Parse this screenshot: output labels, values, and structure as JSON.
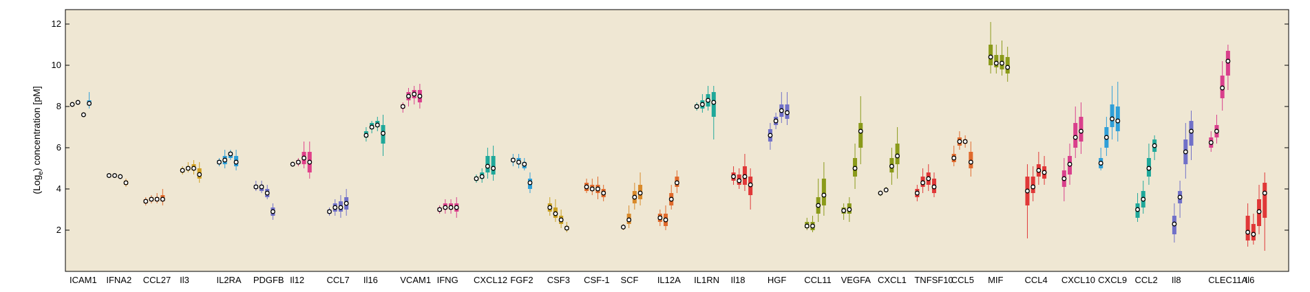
{
  "chart_data": {
    "type": "box",
    "ylabel": "(Log",
    "ylabel_sub": "e",
    "ylabel_rest": ") concentration [pM]",
    "ylim": [
      0,
      12.7
    ],
    "yticks": [
      2,
      4,
      6,
      8,
      10,
      12
    ],
    "background": "#efe7d3",
    "categories": [
      {
        "label": "ICAM1",
        "color": "#2f9fd8",
        "boxes": [
          [
            8.05,
            8.08,
            8.1,
            8.12,
            8.15
          ],
          [
            8.1,
            8.15,
            8.2,
            8.25,
            8.3
          ],
          [
            7.5,
            7.55,
            7.6,
            7.65,
            7.7
          ],
          [
            7.9,
            8.05,
            8.15,
            8.3,
            8.7
          ]
        ]
      },
      {
        "label": "IFNA2",
        "color": "#d98a2b",
        "boxes": [
          [
            4.6,
            4.63,
            4.65,
            4.68,
            4.7
          ],
          [
            4.6,
            4.62,
            4.65,
            4.68,
            4.7
          ],
          [
            4.5,
            4.55,
            4.6,
            4.65,
            4.7
          ],
          [
            4.1,
            4.2,
            4.3,
            4.4,
            4.5
          ]
        ]
      },
      {
        "label": "CCL27",
        "color": "#e06a2c",
        "boxes": [
          [
            3.2,
            3.3,
            3.4,
            3.5,
            3.6
          ],
          [
            3.3,
            3.4,
            3.5,
            3.6,
            3.7
          ],
          [
            3.3,
            3.4,
            3.5,
            3.6,
            3.8
          ],
          [
            3.2,
            3.4,
            3.5,
            3.7,
            4.0
          ]
        ]
      },
      {
        "label": "Il3",
        "color": "#d1a020",
        "boxes": [
          [
            4.7,
            4.8,
            4.9,
            5.0,
            5.1
          ],
          [
            4.8,
            4.9,
            5.0,
            5.1,
            5.3
          ],
          [
            4.7,
            4.9,
            5.0,
            5.2,
            5.4
          ],
          [
            4.3,
            4.5,
            4.7,
            5.0,
            5.3
          ]
        ]
      },
      {
        "label": "IL2RA",
        "color": "#2f9fd8",
        "boxes": [
          [
            5.1,
            5.2,
            5.3,
            5.4,
            5.5
          ],
          [
            5.0,
            5.2,
            5.4,
            5.6,
            5.9
          ],
          [
            5.4,
            5.5,
            5.7,
            5.8,
            5.9
          ],
          [
            4.9,
            5.1,
            5.3,
            5.6,
            5.9
          ]
        ]
      },
      {
        "label": "PDGFB",
        "color": "#7070c8",
        "boxes": [
          [
            3.9,
            4.0,
            4.1,
            4.2,
            4.4
          ],
          [
            3.8,
            3.9,
            4.1,
            4.2,
            4.4
          ],
          [
            3.5,
            3.6,
            3.8,
            4.0,
            4.2
          ],
          [
            2.5,
            2.7,
            2.9,
            3.1,
            3.3
          ]
        ]
      },
      {
        "label": "Il12",
        "color": "#e0408a",
        "boxes": [
          [
            5.1,
            5.15,
            5.2,
            5.25,
            5.3
          ],
          [
            5.1,
            5.2,
            5.3,
            5.4,
            5.5
          ],
          [
            5.0,
            5.2,
            5.5,
            5.8,
            6.3
          ],
          [
            4.5,
            4.8,
            5.3,
            5.8,
            6.3
          ]
        ]
      },
      {
        "label": "CCL7",
        "color": "#7070c8",
        "boxes": [
          [
            2.7,
            2.8,
            2.9,
            3.0,
            3.1
          ],
          [
            2.7,
            2.9,
            3.1,
            3.3,
            3.5
          ],
          [
            2.6,
            2.9,
            3.1,
            3.4,
            3.7
          ],
          [
            2.7,
            3.0,
            3.3,
            3.6,
            4.0
          ]
        ]
      },
      {
        "label": "Il16",
        "color": "#1fa89a",
        "boxes": [
          [
            6.3,
            6.5,
            6.6,
            6.8,
            7.0
          ],
          [
            6.7,
            6.9,
            7.0,
            7.2,
            7.3
          ],
          [
            6.8,
            7.0,
            7.1,
            7.3,
            7.5
          ],
          [
            5.6,
            6.2,
            6.7,
            7.1,
            7.6
          ]
        ]
      },
      {
        "label": "VCAM1",
        "color": "#d93f8c",
        "boxes": [
          [
            7.7,
            7.9,
            8.0,
            8.1,
            8.2
          ],
          [
            8.0,
            8.3,
            8.5,
            8.7,
            8.9
          ],
          [
            8.1,
            8.4,
            8.6,
            8.8,
            9.0
          ],
          [
            7.9,
            8.2,
            8.5,
            8.8,
            9.1
          ]
        ]
      },
      {
        "label": "IFNG",
        "color": "#d93f8c",
        "boxes": [
          [
            2.8,
            2.9,
            3.0,
            3.1,
            3.2
          ],
          [
            2.8,
            3.0,
            3.1,
            3.3,
            3.5
          ],
          [
            2.8,
            3.0,
            3.1,
            3.3,
            3.5
          ],
          [
            2.6,
            2.9,
            3.1,
            3.3,
            3.6
          ]
        ]
      },
      {
        "label": "CXCL12",
        "color": "#1fa89a",
        "boxes": [
          [
            4.3,
            4.4,
            4.5,
            4.6,
            4.7
          ],
          [
            4.3,
            4.5,
            4.6,
            4.8,
            5.0
          ],
          [
            4.5,
            4.8,
            5.1,
            5.6,
            6.0
          ],
          [
            4.4,
            4.7,
            5.0,
            5.6,
            6.1
          ]
        ]
      },
      {
        "label": "FGF2",
        "color": "#2f9fd8",
        "boxes": [
          [
            5.1,
            5.3,
            5.4,
            5.5,
            5.7
          ],
          [
            5.0,
            5.2,
            5.3,
            5.5,
            5.7
          ],
          [
            4.9,
            5.0,
            5.2,
            5.3,
            5.5
          ],
          [
            3.8,
            4.0,
            4.3,
            4.5,
            4.8
          ]
        ]
      },
      {
        "label": "CSF3",
        "color": "#c9a020",
        "boxes": [
          [
            2.7,
            2.9,
            3.1,
            3.3,
            3.6
          ],
          [
            2.4,
            2.6,
            2.8,
            3.1,
            3.5
          ],
          [
            2.1,
            2.3,
            2.5,
            2.7,
            3.0
          ],
          [
            1.9,
            2.0,
            2.1,
            2.2,
            2.4
          ]
        ]
      },
      {
        "label": "CSF-1",
        "color": "#e06a2c",
        "boxes": [
          [
            3.8,
            3.9,
            4.1,
            4.3,
            4.5
          ],
          [
            3.7,
            3.9,
            4.0,
            4.2,
            4.5
          ],
          [
            3.5,
            3.8,
            4.0,
            4.2,
            4.6
          ],
          [
            3.4,
            3.6,
            3.8,
            4.0,
            4.2
          ]
        ]
      },
      {
        "label": "SCF",
        "color": "#d98a2b",
        "boxes": [
          [
            2.0,
            2.1,
            2.15,
            2.2,
            2.3
          ],
          [
            2.1,
            2.3,
            2.5,
            2.8,
            3.2
          ],
          [
            3.0,
            3.3,
            3.6,
            3.9,
            4.3
          ],
          [
            3.2,
            3.5,
            3.8,
            4.2,
            4.8
          ]
        ]
      },
      {
        "label": "IL12A",
        "color": "#e06a2c",
        "boxes": [
          [
            2.2,
            2.4,
            2.6,
            2.8,
            3.0
          ],
          [
            2.0,
            2.2,
            2.5,
            2.8,
            3.2
          ],
          [
            3.0,
            3.2,
            3.5,
            3.8,
            4.2
          ],
          [
            3.8,
            4.1,
            4.3,
            4.6,
            4.9
          ]
        ]
      },
      {
        "label": "IL1RN",
        "color": "#1fa89a",
        "boxes": [
          [
            7.8,
            7.9,
            8.0,
            8.1,
            8.2
          ],
          [
            7.7,
            7.9,
            8.1,
            8.3,
            8.6
          ],
          [
            7.8,
            8.0,
            8.3,
            8.6,
            9.0
          ],
          [
            6.4,
            7.5,
            8.2,
            8.7,
            9.0
          ]
        ]
      },
      {
        "label": "Il18",
        "color": "#e03838",
        "boxes": [
          [
            4.2,
            4.4,
            4.6,
            4.8,
            5.1
          ],
          [
            4.0,
            4.2,
            4.4,
            4.7,
            5.0
          ],
          [
            3.9,
            4.2,
            4.6,
            5.1,
            5.7
          ],
          [
            3.0,
            3.7,
            4.2,
            4.6,
            5.0
          ]
        ]
      },
      {
        "label": "HGF",
        "color": "#7070c8",
        "boxes": [
          [
            5.9,
            6.3,
            6.6,
            6.9,
            7.2
          ],
          [
            6.9,
            7.1,
            7.3,
            7.5,
            7.7
          ],
          [
            7.2,
            7.5,
            7.8,
            8.1,
            8.7
          ],
          [
            7.1,
            7.4,
            7.7,
            8.1,
            8.7
          ]
        ]
      },
      {
        "label": "CCL11",
        "color": "#8a9a1a",
        "boxes": [
          [
            2.0,
            2.1,
            2.2,
            2.4,
            2.6
          ],
          [
            1.9,
            2.0,
            2.2,
            2.4,
            2.7
          ],
          [
            2.4,
            2.8,
            3.2,
            3.6,
            4.5
          ],
          [
            2.7,
            3.2,
            3.7,
            4.5,
            5.3
          ]
        ]
      },
      {
        "label": "VEGFA",
        "color": "#8a9a1a",
        "boxes": [
          [
            2.5,
            2.8,
            2.95,
            3.1,
            3.3
          ],
          [
            2.4,
            2.8,
            3.0,
            3.3,
            3.6
          ],
          [
            4.0,
            4.6,
            5.0,
            5.5,
            6.2
          ],
          [
            5.2,
            6.0,
            6.8,
            7.2,
            8.5
          ]
        ]
      },
      {
        "label": "CXCL1",
        "color": "#8a9a1a",
        "boxes": [
          [
            3.65,
            3.72,
            3.8,
            3.85,
            3.9
          ],
          [
            3.85,
            3.9,
            3.95,
            4.0,
            4.1
          ],
          [
            4.2,
            4.8,
            5.1,
            5.5,
            6.0
          ],
          [
            4.5,
            5.2,
            5.6,
            6.2,
            7.0
          ]
        ]
      },
      {
        "label": "TNFSF10",
        "color": "#e03838",
        "boxes": [
          [
            3.4,
            3.6,
            3.8,
            4.0,
            4.2
          ],
          [
            3.8,
            4.1,
            4.3,
            4.6,
            5.0
          ],
          [
            3.9,
            4.2,
            4.5,
            4.8,
            5.2
          ],
          [
            3.6,
            3.8,
            4.1,
            4.5,
            4.8
          ]
        ]
      },
      {
        "label": "CCL5",
        "color": "#e06a2c",
        "boxes": [
          [
            5.1,
            5.3,
            5.5,
            5.7,
            6.1
          ],
          [
            5.9,
            6.1,
            6.3,
            6.5,
            6.8
          ],
          [
            6.0,
            6.2,
            6.3,
            6.4,
            6.6
          ],
          [
            4.6,
            5.0,
            5.3,
            5.8,
            6.3
          ]
        ]
      },
      {
        "label": "MIF",
        "color": "#8a9a1a",
        "boxes": [
          [
            9.6,
            10.0,
            10.4,
            11.0,
            12.1
          ],
          [
            9.6,
            9.9,
            10.1,
            10.5,
            11.0
          ],
          [
            9.5,
            9.8,
            10.1,
            10.5,
            11.2
          ],
          [
            9.2,
            9.6,
            9.9,
            10.4,
            10.9
          ]
        ]
      },
      {
        "label": "CCL4",
        "color": "#e03838",
        "boxes": [
          [
            1.6,
            3.2,
            3.9,
            4.6,
            5.2
          ],
          [
            3.4,
            3.8,
            4.1,
            4.6,
            5.1
          ],
          [
            4.2,
            4.6,
            4.9,
            5.2,
            5.8
          ],
          [
            4.2,
            4.5,
            4.8,
            5.1,
            5.6
          ]
        ]
      },
      {
        "label": "CXCL10",
        "color": "#d93f8c",
        "boxes": [
          [
            3.4,
            4.1,
            4.5,
            4.9,
            5.5
          ],
          [
            4.2,
            4.7,
            5.2,
            5.6,
            6.2
          ],
          [
            5.5,
            6.0,
            6.5,
            7.2,
            8.0
          ],
          [
            5.7,
            6.3,
            6.8,
            7.5,
            8.2
          ]
        ]
      },
      {
        "label": "CXCL9",
        "color": "#2f9fd8",
        "boxes": [
          [
            4.9,
            5.0,
            5.25,
            5.5,
            6.0
          ],
          [
            5.6,
            6.0,
            6.5,
            7.0,
            7.5
          ],
          [
            6.4,
            7.0,
            7.4,
            8.1,
            9.0
          ],
          [
            6.3,
            6.8,
            7.3,
            8.0,
            9.2
          ]
        ]
      },
      {
        "label": "CCL2",
        "color": "#1fa89a",
        "boxes": [
          [
            2.4,
            2.6,
            3.0,
            3.3,
            3.8
          ],
          [
            2.8,
            3.1,
            3.5,
            3.9,
            4.4
          ],
          [
            4.2,
            4.6,
            5.0,
            5.5,
            6.2
          ],
          [
            5.4,
            5.8,
            6.1,
            6.4,
            6.6
          ]
        ]
      },
      {
        "label": "Il8",
        "color": "#7070c8",
        "boxes": [
          [
            1.4,
            1.8,
            2.3,
            2.7,
            3.3
          ],
          [
            2.6,
            3.3,
            3.6,
            3.9,
            4.4
          ],
          [
            4.5,
            5.2,
            5.8,
            6.4,
            7.2
          ],
          [
            5.4,
            6.1,
            6.8,
            7.3,
            7.8
          ]
        ]
      },
      {
        "label": "CLEC11A",
        "color": "#d93f8c",
        "boxes": [
          [
            5.8,
            6.0,
            6.25,
            6.5,
            6.8
          ],
          [
            6.2,
            6.5,
            6.8,
            7.1,
            7.6
          ],
          [
            7.8,
            8.4,
            8.9,
            9.5,
            10.2
          ],
          [
            8.8,
            9.5,
            10.2,
            10.7,
            11.0
          ]
        ]
      },
      {
        "label": "Il6",
        "color": "#e03838",
        "boxes": [
          [
            1.2,
            1.5,
            1.9,
            2.7,
            3.3
          ],
          [
            1.3,
            1.5,
            1.8,
            2.3,
            2.8
          ],
          [
            1.8,
            2.2,
            2.9,
            3.5,
            4.2
          ],
          [
            1.0,
            2.6,
            3.8,
            4.3,
            4.8
          ]
        ]
      }
    ]
  }
}
